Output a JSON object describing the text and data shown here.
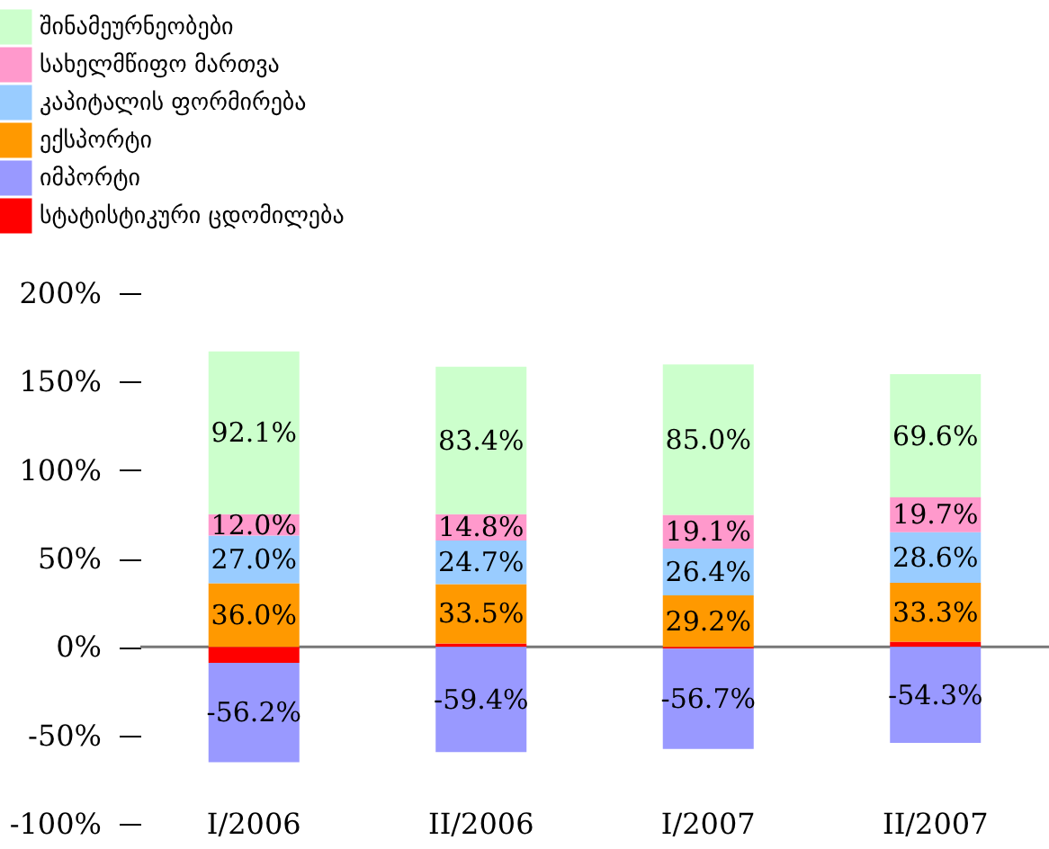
{
  "chart_data": {
    "type": "bar",
    "stacked": true,
    "categories": [
      "I/2006",
      "II/2006",
      "I/2007",
      "II/2007"
    ],
    "series": [
      {
        "name": "სტატისტიკური ცდომილება",
        "color": "#ff0000",
        "values": [
          -9,
          2,
          -1,
          3
        ]
      },
      {
        "name": "იმპორტი",
        "color": "#9999ff",
        "values": [
          -56.2,
          -59.4,
          -56.7,
          -54.3
        ],
        "value_labels": [
          "-56.2%",
          "-59.4%",
          "-56.7%",
          "-54.3%"
        ]
      },
      {
        "name": "ექსპორტი",
        "color": "#ff9900",
        "values": [
          36.0,
          33.5,
          29.2,
          33.3
        ],
        "value_labels": [
          "36.0%",
          "33.5%",
          "29.2%",
          "33.3%"
        ]
      },
      {
        "name": "კაპიტალის ფორმირება",
        "color": "#99ccff",
        "values": [
          27.0,
          24.7,
          26.4,
          28.6
        ],
        "value_labels": [
          "27.0%",
          "24.7%",
          "26.4%",
          "28.6%"
        ]
      },
      {
        "name": "სახელმწიფო მართვა",
        "color": "#ff99cc",
        "values": [
          12.0,
          14.8,
          19.1,
          19.7
        ],
        "value_labels": [
          "12.0%",
          "14.8%",
          "19.1%",
          "19.7%"
        ]
      },
      {
        "name": "შინამეურნეობები",
        "color": "#ccffcc",
        "values": [
          92.1,
          83.4,
          85.0,
          69.6
        ],
        "value_labels": [
          "92.1%",
          "83.4%",
          "85.0%",
          "69.6%"
        ]
      }
    ],
    "ylim": [
      -100,
      200
    ],
    "yticks": [
      {
        "value": -100,
        "label": "-100%"
      },
      {
        "value": -50,
        "label": "-50%"
      },
      {
        "value": 0,
        "label": "0%"
      },
      {
        "value": 50,
        "label": "50%"
      },
      {
        "value": 100,
        "label": "100%"
      },
      {
        "value": 150,
        "label": "150%"
      },
      {
        "value": 200,
        "label": "200%"
      }
    ],
    "legend": "top left"
  }
}
